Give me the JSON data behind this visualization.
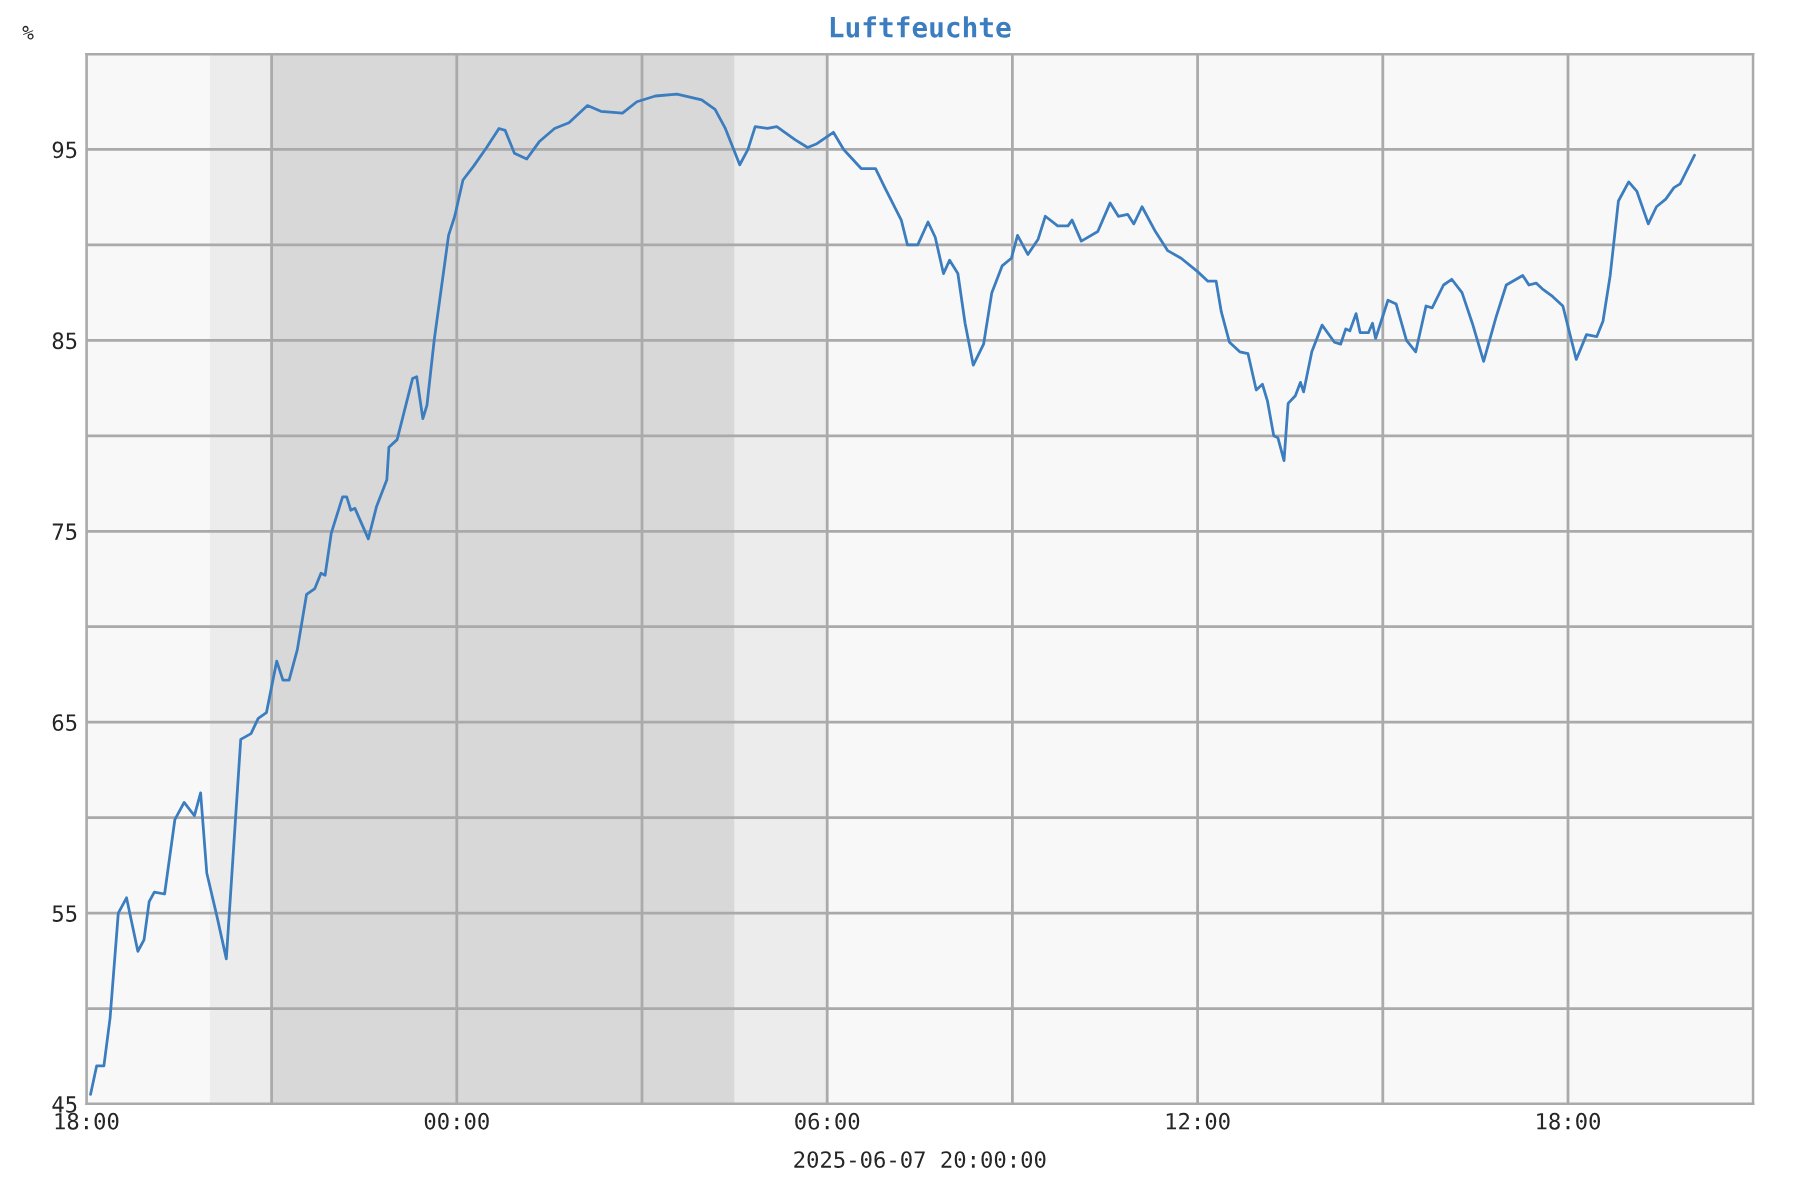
{
  "chart_data": {
    "type": "line",
    "title": "Luftfeuchte",
    "xlabel": "2025-06-07 20:00:00",
    "ylabel": "%",
    "xlim": [
      "2025-06-06T18:00",
      "2025-06-07T21:00"
    ],
    "ylim": [
      45,
      100
    ],
    "xticks": [
      {
        "value": "2025-06-06T18:00",
        "label": "18:00"
      },
      {
        "value": "2025-06-06T21:00",
        "label": null
      },
      {
        "value": "2025-06-07T00:00",
        "label": "00:00"
      },
      {
        "value": "2025-06-07T03:00",
        "label": null
      },
      {
        "value": "2025-06-07T06:00",
        "label": "06:00"
      },
      {
        "value": "2025-06-07T09:00",
        "label": null
      },
      {
        "value": "2025-06-07T12:00",
        "label": "12:00"
      },
      {
        "value": "2025-06-07T15:00",
        "label": null
      },
      {
        "value": "2025-06-07T18:00",
        "label": "18:00"
      },
      {
        "value": "2025-06-07T21:00",
        "label": null
      }
    ],
    "yticks": [
      45,
      {
        "value": 50,
        "label": null
      },
      55,
      {
        "value": 60,
        "label": null
      },
      65,
      {
        "value": 70,
        "label": null
      },
      75,
      {
        "value": 80,
        "label": null
      },
      85,
      {
        "value": 90,
        "label": null
      },
      95,
      {
        "value": 100,
        "label": null
      }
    ],
    "grid": true,
    "marker": "none",
    "line_style": "solid",
    "bands": [
      {
        "axis": "x",
        "from": "2025-06-06T20:00",
        "to": "2025-06-06T21:00",
        "color": "#ececec"
      },
      {
        "axis": "x",
        "from": "2025-06-06T21:00",
        "to": "2025-06-07T04:30",
        "color": "#d8d8d8"
      },
      {
        "axis": "x",
        "from": "2025-06-07T04:30",
        "to": "2025-06-07T06:00",
        "color": "#ececec"
      }
    ],
    "series": [
      {
        "color": "#3b7dbf",
        "x": [
          "2025-06-06T18:04",
          "2025-06-06T18:10",
          "2025-06-06T18:17",
          "2025-06-06T18:23",
          "2025-06-06T18:31",
          "2025-06-06T18:39",
          "2025-06-06T18:50",
          "2025-06-06T18:56",
          "2025-06-06T19:01",
          "2025-06-06T19:06",
          "2025-06-06T19:16",
          "2025-06-06T19:26",
          "2025-06-06T19:35",
          "2025-06-06T19:45",
          "2025-06-06T19:51",
          "2025-06-06T19:57",
          "2025-06-06T20:07",
          "2025-06-06T20:16",
          "2025-06-06T20:30",
          "2025-06-06T20:40",
          "2025-06-06T20:47",
          "2025-06-06T20:55",
          "2025-06-06T21:05",
          "2025-06-06T21:11",
          "2025-06-06T21:17",
          "2025-06-06T21:25",
          "2025-06-06T21:34",
          "2025-06-06T21:42",
          "2025-06-06T21:48",
          "2025-06-06T21:52",
          "2025-06-06T21:58",
          "2025-06-06T22:09",
          "2025-06-06T22:13",
          "2025-06-06T22:17",
          "2025-06-06T22:21",
          "2025-06-06T22:34",
          "2025-06-06T22:42",
          "2025-06-06T22:52",
          "2025-06-06T22:54",
          "2025-06-06T23:02",
          "2025-06-06T23:17",
          "2025-06-06T23:21",
          "2025-06-06T23:27",
          "2025-06-06T23:31",
          "2025-06-06T23:38",
          "2025-06-06T23:52",
          "2025-06-06T23:58",
          "2025-06-07T00:06",
          "2025-06-07T00:16",
          "2025-06-07T00:29",
          "2025-06-07T00:41",
          "2025-06-07T00:47",
          "2025-06-07T00:56",
          "2025-06-07T01:08",
          "2025-06-07T01:20",
          "2025-06-07T01:35",
          "2025-06-07T01:49",
          "2025-06-07T02:07",
          "2025-06-07T02:20",
          "2025-06-07T02:41",
          "2025-06-07T02:55",
          "2025-06-07T03:13",
          "2025-06-07T03:34",
          "2025-06-07T03:58",
          "2025-06-07T04:11",
          "2025-06-07T04:21",
          "2025-06-07T04:35",
          "2025-06-07T04:43",
          "2025-06-07T04:50",
          "2025-06-07T05:02",
          "2025-06-07T05:11",
          "2025-06-07T05:29",
          "2025-06-07T05:41",
          "2025-06-07T05:50",
          "2025-06-07T06:06",
          "2025-06-07T06:16",
          "2025-06-07T06:33",
          "2025-06-07T06:47",
          "2025-06-07T06:56",
          "2025-06-07T07:12",
          "2025-06-07T07:18",
          "2025-06-07T07:28",
          "2025-06-07T07:38",
          "2025-06-07T07:45",
          "2025-06-07T07:53",
          "2025-06-07T07:59",
          "2025-06-07T08:07",
          "2025-06-07T08:14",
          "2025-06-07T08:22",
          "2025-06-07T08:32",
          "2025-06-07T08:40",
          "2025-06-07T08:50",
          "2025-06-07T08:59",
          "2025-06-07T09:05",
          "2025-06-07T09:15",
          "2025-06-07T09:25",
          "2025-06-07T09:32",
          "2025-06-07T09:44",
          "2025-06-07T09:54",
          "2025-06-07T09:58",
          "2025-06-07T10:07",
          "2025-06-07T10:23",
          "2025-06-07T10:35",
          "2025-06-07T10:43",
          "2025-06-07T10:52",
          "2025-06-07T10:58",
          "2025-06-07T11:06",
          "2025-06-07T11:19",
          "2025-06-07T11:31",
          "2025-06-07T11:44",
          "2025-06-07T12:00",
          "2025-06-07T12:10",
          "2025-06-07T12:18",
          "2025-06-07T12:23",
          "2025-06-07T12:31",
          "2025-06-07T12:41",
          "2025-06-07T12:49",
          "2025-06-07T12:57",
          "2025-06-07T13:03",
          "2025-06-07T13:08",
          "2025-06-07T13:14",
          "2025-06-07T13:18",
          "2025-06-07T13:24",
          "2025-06-07T13:28",
          "2025-06-07T13:35",
          "2025-06-07T13:40",
          "2025-06-07T13:43",
          "2025-06-07T13:51",
          "2025-06-07T14:01",
          "2025-06-07T14:13",
          "2025-06-07T14:19",
          "2025-06-07T14:24",
          "2025-06-07T14:28",
          "2025-06-07T14:34",
          "2025-06-07T14:38",
          "2025-06-07T14:46",
          "2025-06-07T14:50",
          "2025-06-07T14:53",
          "2025-06-07T15:05",
          "2025-06-07T15:13",
          "2025-06-07T15:23",
          "2025-06-07T15:32",
          "2025-06-07T15:42",
          "2025-06-07T15:48",
          "2025-06-07T15:59",
          "2025-06-07T16:07",
          "2025-06-07T16:17",
          "2025-06-07T16:27",
          "2025-06-07T16:38",
          "2025-06-07T16:50",
          "2025-06-07T17:00",
          "2025-06-07T17:16",
          "2025-06-07T17:22",
          "2025-06-07T17:29",
          "2025-06-07T17:35",
          "2025-06-07T17:45",
          "2025-06-07T17:55",
          "2025-06-07T18:08",
          "2025-06-07T18:18",
          "2025-06-07T18:28",
          "2025-06-07T18:34",
          "2025-06-07T18:41",
          "2025-06-07T18:49",
          "2025-06-07T18:59",
          "2025-06-07T19:07",
          "2025-06-07T19:18",
          "2025-06-07T19:26",
          "2025-06-07T19:35",
          "2025-06-07T19:43",
          "2025-06-07T19:49",
          "2025-06-07T20:03"
        ],
        "values": [
          45.5,
          47.0,
          47.0,
          49.5,
          55.0,
          55.8,
          53.0,
          53.6,
          55.6,
          56.1,
          56.0,
          59.9,
          60.8,
          60.1,
          61.3,
          57.1,
          54.8,
          52.6,
          64.1,
          64.4,
          65.2,
          65.5,
          68.2,
          67.2,
          67.2,
          68.8,
          71.7,
          72.0,
          72.8,
          72.7,
          74.9,
          76.8,
          76.8,
          76.1,
          76.2,
          74.6,
          76.3,
          77.7,
          79.4,
          79.8,
          83.0,
          83.1,
          80.9,
          81.6,
          85.0,
          90.5,
          91.5,
          93.4,
          94.1,
          95.1,
          96.1,
          96.0,
          94.8,
          94.5,
          95.4,
          96.1,
          96.4,
          97.3,
          97.0,
          96.9,
          97.5,
          97.8,
          97.9,
          97.6,
          97.1,
          96.1,
          94.2,
          95.0,
          96.2,
          96.1,
          96.2,
          95.5,
          95.1,
          95.3,
          95.9,
          95.0,
          94.0,
          94.0,
          93.0,
          91.3,
          90.0,
          90.0,
          91.2,
          90.4,
          88.5,
          89.2,
          88.5,
          85.9,
          83.7,
          84.8,
          87.5,
          88.9,
          89.3,
          90.5,
          89.5,
          90.3,
          91.5,
          91.0,
          91.0,
          91.3,
          90.2,
          90.7,
          92.2,
          91.5,
          91.6,
          91.1,
          92.0,
          90.7,
          89.7,
          89.3,
          88.6,
          88.1,
          88.1,
          86.5,
          84.9,
          84.4,
          84.3,
          82.4,
          82.7,
          81.8,
          80.0,
          79.9,
          78.7,
          81.7,
          82.1,
          82.8,
          82.3,
          84.4,
          85.8,
          84.9,
          84.8,
          85.6,
          85.5,
          86.4,
          85.4,
          85.4,
          85.9,
          85.1,
          87.1,
          86.9,
          85.0,
          84.4,
          86.8,
          86.7,
          87.9,
          88.2,
          87.5,
          85.9,
          83.9,
          86.2,
          87.9,
          88.4,
          87.9,
          88.0,
          87.7,
          87.3,
          86.8,
          84.0,
          85.3,
          85.2,
          86.0,
          88.4,
          92.3,
          93.3,
          92.8,
          91.1,
          92.0,
          92.4,
          93.0,
          93.2,
          94.7
        ]
      }
    ]
  }
}
